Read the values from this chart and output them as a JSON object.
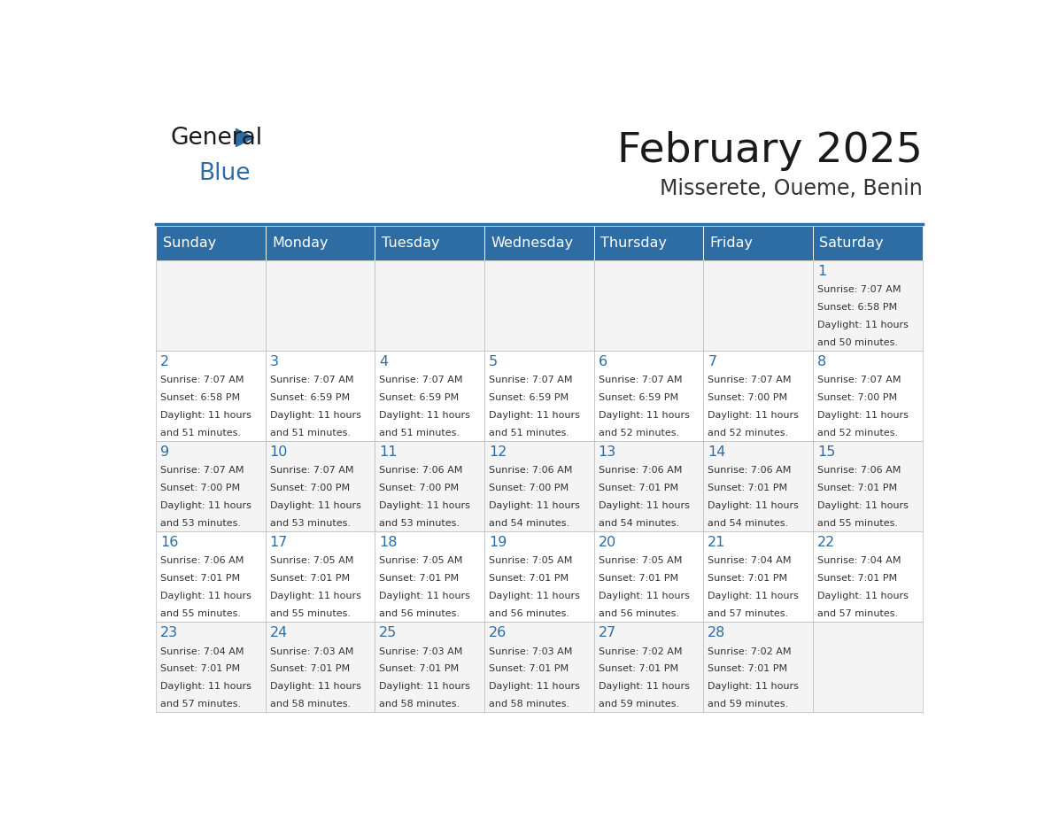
{
  "title": "February 2025",
  "subtitle": "Misserete, Oueme, Benin",
  "header_color": "#2E6DA4",
  "header_text_color": "#FFFFFF",
  "day_number_color": "#2E6DA4",
  "text_color": "#333333",
  "days_of_week": [
    "Sunday",
    "Monday",
    "Tuesday",
    "Wednesday",
    "Thursday",
    "Friday",
    "Saturday"
  ],
  "calendar_data": [
    [
      null,
      null,
      null,
      null,
      null,
      null,
      1
    ],
    [
      2,
      3,
      4,
      5,
      6,
      7,
      8
    ],
    [
      9,
      10,
      11,
      12,
      13,
      14,
      15
    ],
    [
      16,
      17,
      18,
      19,
      20,
      21,
      22
    ],
    [
      23,
      24,
      25,
      26,
      27,
      28,
      null
    ]
  ],
  "sun_data": {
    "1": {
      "rise": "7:07 AM",
      "set": "6:58 PM",
      "day_hours": "11 hours",
      "day_mins": "and 50 minutes."
    },
    "2": {
      "rise": "7:07 AM",
      "set": "6:58 PM",
      "day_hours": "11 hours",
      "day_mins": "and 51 minutes."
    },
    "3": {
      "rise": "7:07 AM",
      "set": "6:59 PM",
      "day_hours": "11 hours",
      "day_mins": "and 51 minutes."
    },
    "4": {
      "rise": "7:07 AM",
      "set": "6:59 PM",
      "day_hours": "11 hours",
      "day_mins": "and 51 minutes."
    },
    "5": {
      "rise": "7:07 AM",
      "set": "6:59 PM",
      "day_hours": "11 hours",
      "day_mins": "and 51 minutes."
    },
    "6": {
      "rise": "7:07 AM",
      "set": "6:59 PM",
      "day_hours": "11 hours",
      "day_mins": "and 52 minutes."
    },
    "7": {
      "rise": "7:07 AM",
      "set": "7:00 PM",
      "day_hours": "11 hours",
      "day_mins": "and 52 minutes."
    },
    "8": {
      "rise": "7:07 AM",
      "set": "7:00 PM",
      "day_hours": "11 hours",
      "day_mins": "and 52 minutes."
    },
    "9": {
      "rise": "7:07 AM",
      "set": "7:00 PM",
      "day_hours": "11 hours",
      "day_mins": "and 53 minutes."
    },
    "10": {
      "rise": "7:07 AM",
      "set": "7:00 PM",
      "day_hours": "11 hours",
      "day_mins": "and 53 minutes."
    },
    "11": {
      "rise": "7:06 AM",
      "set": "7:00 PM",
      "day_hours": "11 hours",
      "day_mins": "and 53 minutes."
    },
    "12": {
      "rise": "7:06 AM",
      "set": "7:00 PM",
      "day_hours": "11 hours",
      "day_mins": "and 54 minutes."
    },
    "13": {
      "rise": "7:06 AM",
      "set": "7:01 PM",
      "day_hours": "11 hours",
      "day_mins": "and 54 minutes."
    },
    "14": {
      "rise": "7:06 AM",
      "set": "7:01 PM",
      "day_hours": "11 hours",
      "day_mins": "and 54 minutes."
    },
    "15": {
      "rise": "7:06 AM",
      "set": "7:01 PM",
      "day_hours": "11 hours",
      "day_mins": "and 55 minutes."
    },
    "16": {
      "rise": "7:06 AM",
      "set": "7:01 PM",
      "day_hours": "11 hours",
      "day_mins": "and 55 minutes."
    },
    "17": {
      "rise": "7:05 AM",
      "set": "7:01 PM",
      "day_hours": "11 hours",
      "day_mins": "and 55 minutes."
    },
    "18": {
      "rise": "7:05 AM",
      "set": "7:01 PM",
      "day_hours": "11 hours",
      "day_mins": "and 56 minutes."
    },
    "19": {
      "rise": "7:05 AM",
      "set": "7:01 PM",
      "day_hours": "11 hours",
      "day_mins": "and 56 minutes."
    },
    "20": {
      "rise": "7:05 AM",
      "set": "7:01 PM",
      "day_hours": "11 hours",
      "day_mins": "and 56 minutes."
    },
    "21": {
      "rise": "7:04 AM",
      "set": "7:01 PM",
      "day_hours": "11 hours",
      "day_mins": "and 57 minutes."
    },
    "22": {
      "rise": "7:04 AM",
      "set": "7:01 PM",
      "day_hours": "11 hours",
      "day_mins": "and 57 minutes."
    },
    "23": {
      "rise": "7:04 AM",
      "set": "7:01 PM",
      "day_hours": "11 hours",
      "day_mins": "and 57 minutes."
    },
    "24": {
      "rise": "7:03 AM",
      "set": "7:01 PM",
      "day_hours": "11 hours",
      "day_mins": "and 58 minutes."
    },
    "25": {
      "rise": "7:03 AM",
      "set": "7:01 PM",
      "day_hours": "11 hours",
      "day_mins": "and 58 minutes."
    },
    "26": {
      "rise": "7:03 AM",
      "set": "7:01 PM",
      "day_hours": "11 hours",
      "day_mins": "and 58 minutes."
    },
    "27": {
      "rise": "7:02 AM",
      "set": "7:01 PM",
      "day_hours": "11 hours",
      "day_mins": "and 59 minutes."
    },
    "28": {
      "rise": "7:02 AM",
      "set": "7:01 PM",
      "day_hours": "11 hours",
      "day_mins": "and 59 minutes."
    }
  }
}
